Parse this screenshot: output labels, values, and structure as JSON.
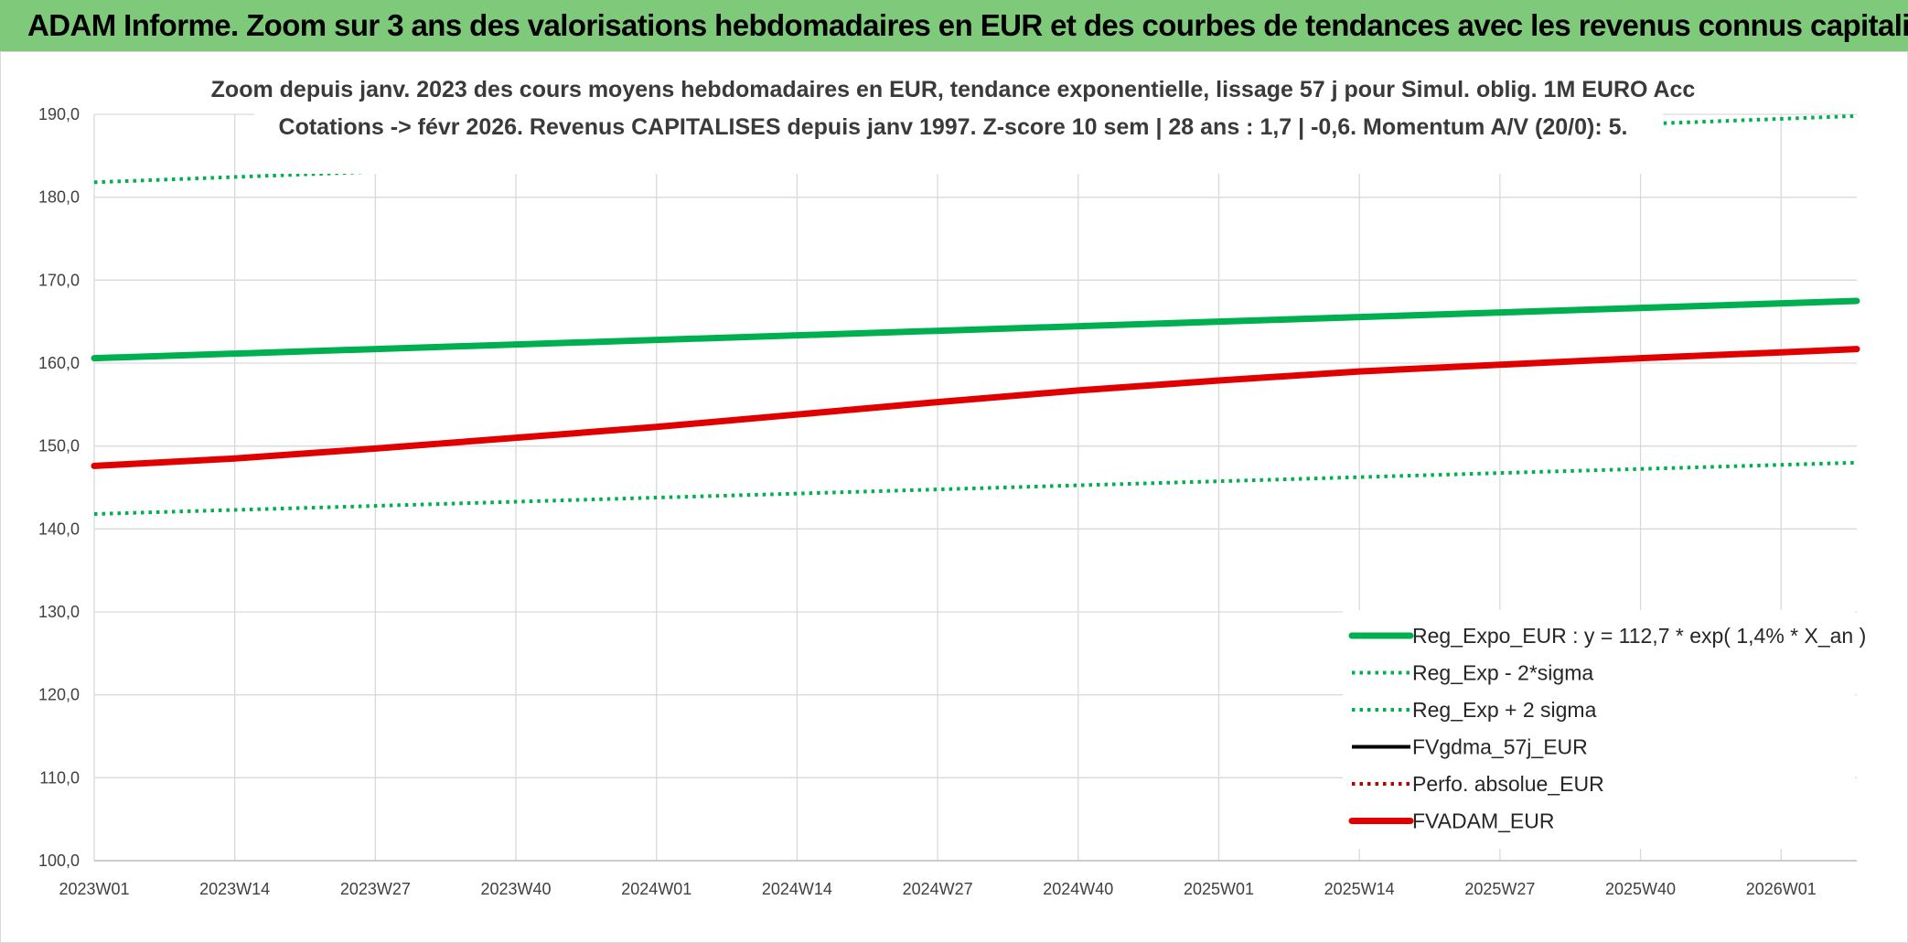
{
  "banner": {
    "title": "ADAM Informe. Zoom sur 3 ans des valorisations hebdomadaires en EUR et des courbes de tendances avec les revenus connus capitalisés"
  },
  "chart_data": {
    "type": "line",
    "title_lines": [
      "Zoom depuis janv. 2023 des cours moyens hebdomadaires en EUR, tendance exponentielle, lissage 57 j pour Simul. oblig. 1M EURO Acc",
      "Cotations -> févr 2026. Revenus CAPITALISES depuis janv 1997. Z-score 10 sem | 28 ans : 1,7 | -0,6. Momentum A/V (20/0): 5."
    ],
    "x_tick_labels": [
      "2023W01",
      "2023W14",
      "2023W27",
      "2023W40",
      "2024W01",
      "2024W14",
      "2024W27",
      "2024W40",
      "2025W01",
      "2025W14",
      "2025W27",
      "2025W40",
      "2026W01"
    ],
    "x_tick_interval_weeks": 13,
    "x_range_weeks": [
      0,
      163
    ],
    "y_tick_labels": [
      "100,0",
      "110,0",
      "120,0",
      "130,0",
      "140,0",
      "150,0",
      "160,0",
      "170,0",
      "180,0",
      "190,0"
    ],
    "ylim": [
      100,
      190
    ],
    "grid": true,
    "legend_position": "bottom-right",
    "series": [
      {
        "name": "Reg_Expo_EUR : y = 112,7 * exp( 1,4% *  X_an )",
        "color": "#00b050",
        "style": "solid-thick",
        "points": [
          [
            0,
            160.6
          ],
          [
            163,
            167.5
          ]
        ]
      },
      {
        "name": "Reg_Exp - 2*sigma",
        "color": "#00b050",
        "style": "dotted",
        "points": [
          [
            0,
            141.8
          ],
          [
            163,
            148.0
          ]
        ]
      },
      {
        "name": "Reg_Exp + 2 sigma",
        "color": "#00b050",
        "style": "dotted",
        "points": [
          [
            0,
            181.8
          ],
          [
            163,
            189.8
          ]
        ]
      },
      {
        "name": "FVgdma_57j_EUR",
        "color": "#000000",
        "style": "solid",
        "points": []
      },
      {
        "name": "Perfo. absolue_EUR",
        "color": "#c00000",
        "style": "dotted",
        "points": []
      },
      {
        "name": "FVADAM_EUR",
        "color": "#e00000",
        "style": "solid-thick",
        "points": [
          [
            0,
            147.6
          ],
          [
            13,
            148.5
          ],
          [
            26,
            149.7
          ],
          [
            39,
            151.0
          ],
          [
            52,
            152.3
          ],
          [
            65,
            153.8
          ],
          [
            78,
            155.3
          ],
          [
            91,
            156.7
          ],
          [
            104,
            157.9
          ],
          [
            117,
            159.0
          ],
          [
            130,
            159.8
          ],
          [
            143,
            160.6
          ],
          [
            156,
            161.3
          ],
          [
            163,
            161.7
          ]
        ]
      }
    ]
  }
}
